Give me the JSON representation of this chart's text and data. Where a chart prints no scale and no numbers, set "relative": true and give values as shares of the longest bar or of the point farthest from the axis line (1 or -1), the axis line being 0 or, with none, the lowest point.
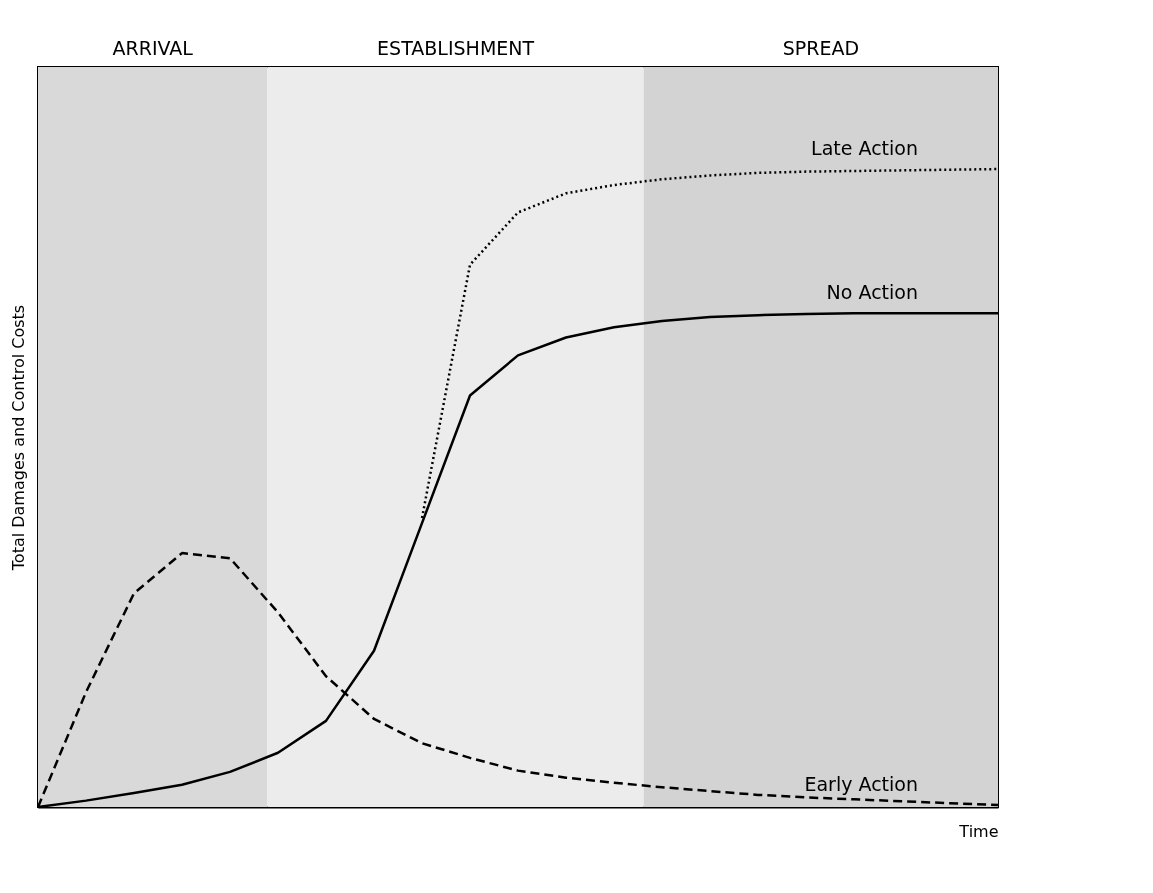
{
  "chart_data": {
    "type": "line",
    "relative": true,
    "xlabel": "Time",
    "ylabel": "Total Damages and Control Costs",
    "categories": [
      null,
      null,
      null,
      null,
      null,
      null,
      null,
      null,
      null,
      null,
      null,
      null,
      null,
      null,
      null,
      null,
      null,
      null,
      null,
      null,
      null
    ],
    "legend": false,
    "annotations": [
      "ARRIVAL",
      "ESTABLISHMENT",
      "SPREAD"
    ],
    "series": [
      {
        "name": "Late Action",
        "color": "#000000",
        "line_style": "dotted",
        "values": [
          null,
          null,
          null,
          null,
          null,
          null,
          null,
          null,
          0.453,
          0.85,
          0.932,
          0.962,
          0.975,
          0.984,
          0.99,
          0.994,
          0.996,
          0.997,
          0.998,
          0.999,
          1.0
        ]
      },
      {
        "name": "No Action",
        "color": "#000000",
        "line_style": "solid",
        "values": [
          0,
          0.01,
          0.022,
          0.035,
          0.055,
          0.085,
          0.135,
          0.245,
          0.445,
          0.645,
          0.708,
          0.736,
          0.752,
          0.762,
          0.768,
          0.771,
          0.773,
          0.774,
          0.774,
          0.774,
          0.774
        ]
      },
      {
        "name": "Early Action",
        "color": "#000000",
        "line_style": "dashed",
        "values": [
          0,
          0.18,
          0.335,
          0.398,
          0.39,
          0.305,
          0.205,
          0.138,
          0.1,
          0.077,
          0.057,
          0.046,
          0.038,
          0.031,
          0.025,
          0.019,
          0.015,
          0.012,
          0.009,
          0.006,
          0.003
        ]
      }
    ]
  }
}
